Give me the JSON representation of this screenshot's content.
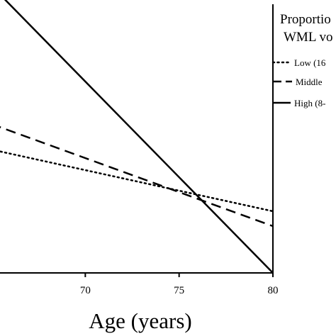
{
  "chart_data": {
    "type": "line",
    "title": "",
    "xlabel": "Age (years)",
    "ylabel": "",
    "xlim": [
      65,
      80
    ],
    "xticks": [
      70,
      75,
      80
    ],
    "grid": false,
    "legend_position": "right",
    "legend": {
      "title_lines": [
        "Proportio",
        "WML vo"
      ],
      "entries": [
        "Low (16",
        "Middle",
        "High (8-"
      ]
    },
    "series": [
      {
        "name": "Low (16",
        "style": "dotted",
        "x": [
          65,
          80
        ],
        "y": [
          0.58,
          0.29
        ]
      },
      {
        "name": "Middle",
        "style": "dashed",
        "x": [
          65,
          80
        ],
        "y": [
          0.7,
          0.22
        ]
      },
      {
        "name": "High (8-",
        "style": "solid",
        "x": [
          65,
          80
        ],
        "y": [
          1.35,
          0.0
        ]
      }
    ],
    "ylim": [
      0,
      1.1
    ]
  }
}
